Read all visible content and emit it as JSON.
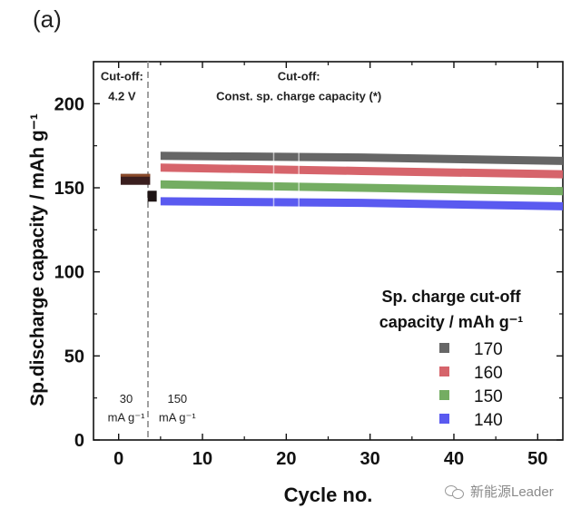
{
  "panel_label": "(a)",
  "watermark": {
    "text": "新能源Leader",
    "icon": "wechat-icon"
  },
  "chart_data": {
    "type": "scatter",
    "title": "",
    "xlabel": "Cycle no.",
    "ylabel": "Sp.discharge capacity / mAh g⁻¹",
    "xlim": [
      -3,
      53
    ],
    "ylim": [
      0,
      225
    ],
    "xticks": [
      0,
      10,
      20,
      30,
      40,
      50
    ],
    "xticks_minor": [
      5,
      15,
      25,
      35,
      45
    ],
    "yticks": [
      0,
      50,
      100,
      150,
      200
    ],
    "yticks_minor": [
      25,
      75,
      125,
      175
    ],
    "grid": false,
    "divider_x": 3.5,
    "annotations": [
      {
        "text": "Cut-off:",
        "x": 0.4,
        "y": 214,
        "bold": true
      },
      {
        "text": "4.2 V",
        "x": 0.4,
        "y": 202,
        "bold": true
      },
      {
        "text": "Cut-off:",
        "x": 21.5,
        "y": 214,
        "bold": true
      },
      {
        "text": "Const. sp. charge capacity (*)",
        "x": 21.5,
        "y": 202,
        "bold": true
      },
      {
        "text": "30",
        "x": 0.9,
        "y": 22,
        "bold": false
      },
      {
        "text": "mA g⁻¹",
        "x": 0.9,
        "y": 11,
        "bold": false
      },
      {
        "text": "150",
        "x": 7.0,
        "y": 22,
        "bold": false
      },
      {
        "text": "mA g⁻¹",
        "x": 7.0,
        "y": 11,
        "bold": false
      }
    ],
    "legend": {
      "title_line1": "Sp. charge cut-off",
      "title_line2": "capacity / mAh g⁻¹",
      "position": "lower-right"
    },
    "formation": {
      "x": [
        1,
        2,
        3
      ],
      "y": [
        155,
        155,
        155
      ],
      "x_after": [
        4
      ],
      "y_after": [
        145
      ],
      "color": "#3a1e1e"
    },
    "series": [
      {
        "name": "170",
        "color": "#666666",
        "x_start": 5,
        "x_end": 53,
        "y_start": 169,
        "y_mid": 168,
        "y_end": 166
      },
      {
        "name": "160",
        "color": "#d6646b",
        "x_start": 5,
        "x_end": 53,
        "y_start": 162,
        "y_mid": 160,
        "y_end": 158
      },
      {
        "name": "150",
        "color": "#74ad62",
        "x_start": 5,
        "x_end": 53,
        "y_start": 152,
        "y_mid": 150,
        "y_end": 148
      },
      {
        "name": "140",
        "color": "#5a5af0",
        "x_start": 5,
        "x_end": 53,
        "y_start": 142,
        "y_mid": 141,
        "y_end": 139
      }
    ]
  }
}
